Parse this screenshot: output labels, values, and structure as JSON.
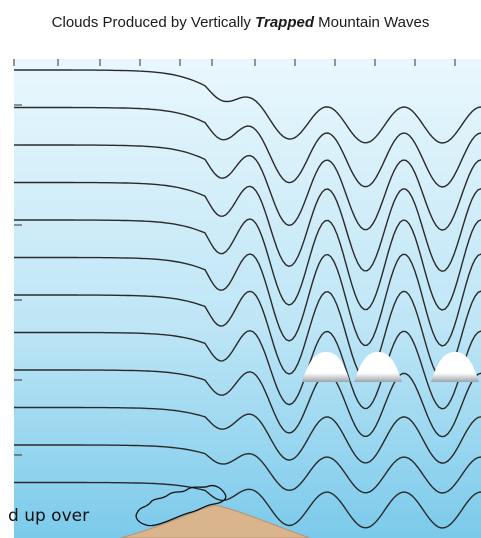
{
  "title": {
    "before": "Clouds Produced by Vertically ",
    "emphasis": "Trapped",
    "after": " Mountain Waves"
  },
  "caption": "d up over",
  "colors": {
    "sky_top": "#e8f6fc",
    "sky_bottom": "#7ac9ea",
    "streamline": "#2a2a2a",
    "mountain": "#d9b48c",
    "cloud": "#ffffff"
  },
  "diagram": {
    "streamline_count": 12,
    "lenticular_cloud_count": 3,
    "icons": [
      "cap-cloud-icon",
      "mountain-icon"
    ]
  }
}
